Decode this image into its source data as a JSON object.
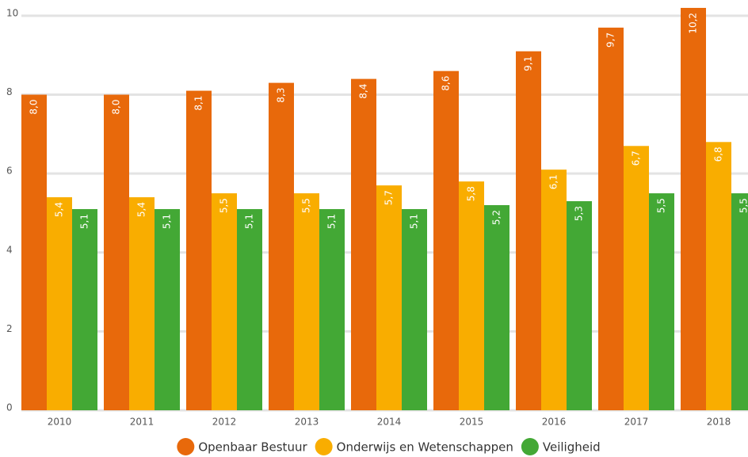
{
  "chart_data": {
    "type": "bar",
    "categories": [
      "2010",
      "2011",
      "2012",
      "2013",
      "2014",
      "2015",
      "2016",
      "2017",
      "2018"
    ],
    "series": [
      {
        "name": "Openbaar Bestuur",
        "color": "#e8690b",
        "values": [
          8.0,
          8.0,
          8.1,
          8.3,
          8.4,
          8.6,
          9.1,
          9.7,
          10.2
        ],
        "value_labels": [
          "8,0",
          "8,0",
          "8,1",
          "8,3",
          "8,4",
          "8,6",
          "9,1",
          "9,7",
          "10,2"
        ]
      },
      {
        "name": "Onderwijs en Wetenschappen",
        "color": "#f9ad00",
        "values": [
          5.4,
          5.4,
          5.5,
          5.5,
          5.7,
          5.8,
          6.1,
          6.7,
          6.8
        ],
        "value_labels": [
          "5,4",
          "5,4",
          "5,5",
          "5,5",
          "5,7",
          "5,8",
          "6,1",
          "6,7",
          "6,8"
        ]
      },
      {
        "name": "Veiligheid",
        "color": "#43a835",
        "values": [
          5.1,
          5.1,
          5.1,
          5.1,
          5.1,
          5.2,
          5.3,
          5.5,
          5.5
        ],
        "value_labels": [
          "5,1",
          "5,1",
          "5,1",
          "5,1",
          "5,1",
          "5,2",
          "5,3",
          "5,5",
          "5,5"
        ]
      }
    ],
    "ylim": [
      0,
      10.4
    ],
    "yticks": [
      0,
      2,
      4,
      6,
      8,
      10
    ],
    "grid": true,
    "legend": "bottom"
  }
}
